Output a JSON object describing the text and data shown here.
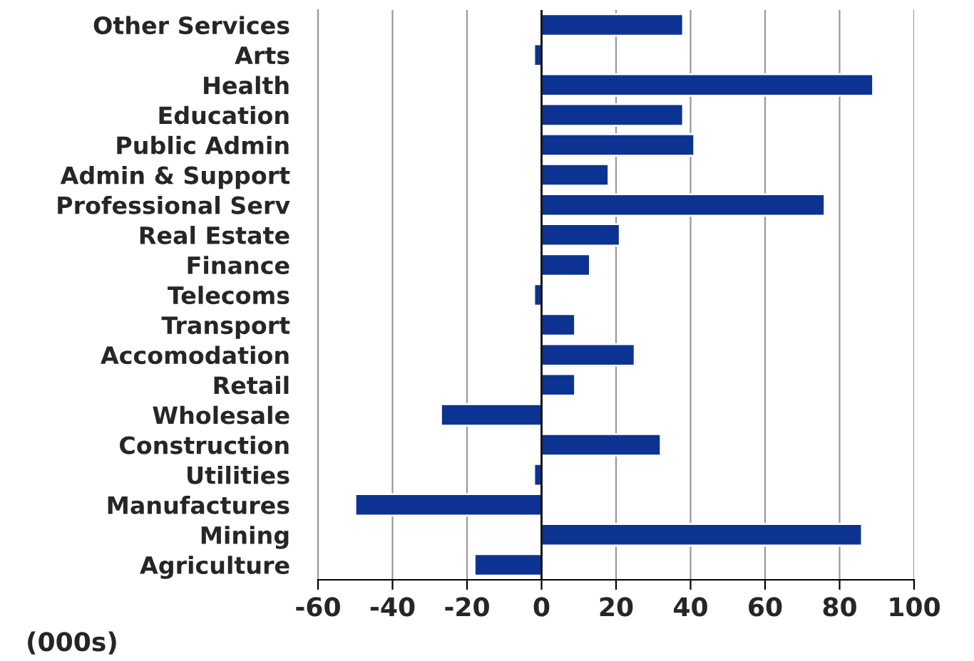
{
  "chart_data": {
    "type": "bar",
    "orientation": "horizontal",
    "categories": [
      "Other Services",
      "Arts",
      "Health",
      "Education",
      "Public Admin",
      "Admin & Support",
      "Professional Serv",
      "Real Estate",
      "Finance",
      "Telecoms",
      "Transport",
      "Accomodation",
      "Retail",
      "Wholesale",
      "Construction",
      "Utilities",
      "Manufactures",
      "Mining",
      "Agriculture"
    ],
    "values": [
      38,
      -2,
      89,
      38,
      41,
      18,
      76,
      21,
      13,
      -2,
      9,
      25,
      9,
      -27,
      32,
      -2,
      -50,
      86,
      -18
    ],
    "color": "#0c3391",
    "xlim": [
      -60,
      100
    ],
    "xticks": [
      -60,
      -40,
      -20,
      0,
      20,
      40,
      60,
      80,
      100
    ],
    "grid": "x",
    "ref_lines": [
      {
        "axis": "x",
        "value": 0,
        "color": "#000000"
      }
    ],
    "annotations": [
      "(000s)"
    ]
  }
}
